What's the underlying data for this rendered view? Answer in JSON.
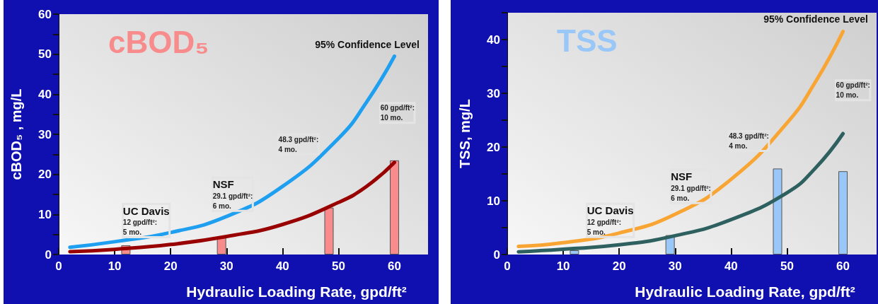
{
  "chart_data": [
    {
      "type": "bar",
      "title": "cBOD₅",
      "ylabel": "cBOD₅ , mg/L",
      "xlabel": "Hydraulic Loading Rate, gpd/ft²",
      "xlim": [
        0,
        66
      ],
      "xticks": [
        0,
        10,
        20,
        30,
        40,
        50,
        60
      ],
      "ylim": [
        0,
        60
      ],
      "yticks": [
        0,
        {
          "value": 5,
          "label": null
        },
        10,
        {
          "value": 15,
          "label": null
        },
        20,
        {
          "value": 25,
          "label": null
        },
        30,
        {
          "value": 35,
          "label": null
        },
        40,
        {
          "value": 45,
          "label": null
        },
        50,
        {
          "value": 55,
          "label": null
        },
        60
      ],
      "marker": "none",
      "annotations": [
        "95% Confidence Level",
        "UC Davis\n12 gpd/ft²:\n5 mo.",
        "NSF\n29.1 gpd/ft²:\n6 mo.",
        "48.3 gpd/ft²:\n4 mo.",
        "60 gpd/ft²:\n10 mo."
      ],
      "series": [
        {
          "color": "#f88c8c",
          "x": [
            12,
            29.1,
            48.3,
            60
          ],
          "values": [
            2.3,
            4.2,
            11.7,
            23.5
          ]
        },
        {
          "type": "line",
          "color": "#1e9ff0",
          "x": [
            2,
            10,
            20,
            30,
            40,
            50,
            55,
            60
          ],
          "values": [
            1.8,
            3.2,
            5.5,
            9.5,
            17,
            29,
            38,
            49.5
          ]
        },
        {
          "type": "line",
          "color": "#990000",
          "x": [
            2,
            10,
            20,
            30,
            40,
            50,
            55,
            60
          ],
          "values": [
            0.7,
            1.3,
            2.5,
            4.5,
            7.5,
            13,
            17,
            23
          ]
        }
      ]
    },
    {
      "type": "bar",
      "title": "TSS",
      "ylabel": "TSS, mg/L",
      "xlabel": "Hydraulic Loading Rate, gpd/ft²",
      "xlim": [
        0,
        66
      ],
      "xticks": [
        0,
        10,
        20,
        30,
        40,
        50,
        60
      ],
      "ylim": [
        0,
        45
      ],
      "yticks": [
        0,
        {
          "value": 5,
          "label": null
        },
        10,
        {
          "value": 15,
          "label": null
        },
        20,
        {
          "value": 25,
          "label": null
        },
        30,
        {
          "value": 35,
          "label": null
        },
        40,
        {
          "value": 45,
          "label": null
        }
      ],
      "marker": "none",
      "annotations": [
        "95% Confidence Level",
        "UC Davis\n12 gpd/ft²:\n5 mo.",
        "NSF\n29.1 gpd/ft²:\n6 mo.",
        "48.3 gpd/ft²:\n4 mo.",
        "60 gpd/ft²:\n10 mo."
      ],
      "series": [
        {
          "color": "#99c8f8",
          "x": [
            12,
            29.1,
            48.3,
            60
          ],
          "values": [
            0.8,
            3.6,
            16,
            15.5
          ]
        },
        {
          "type": "line",
          "color": "#f9a533",
          "x": [
            2,
            10,
            20,
            30,
            40,
            50,
            55,
            60
          ],
          "values": [
            1.5,
            2.2,
            4,
            7.5,
            14,
            24.5,
            32,
            41.5
          ]
        },
        {
          "type": "line",
          "color": "#2e6060",
          "x": [
            2,
            10,
            20,
            30,
            40,
            50,
            55,
            60
          ],
          "values": [
            0.5,
            1,
            1.8,
            3.5,
            6.5,
            11.5,
            16,
            22.5
          ]
        }
      ]
    }
  ]
}
